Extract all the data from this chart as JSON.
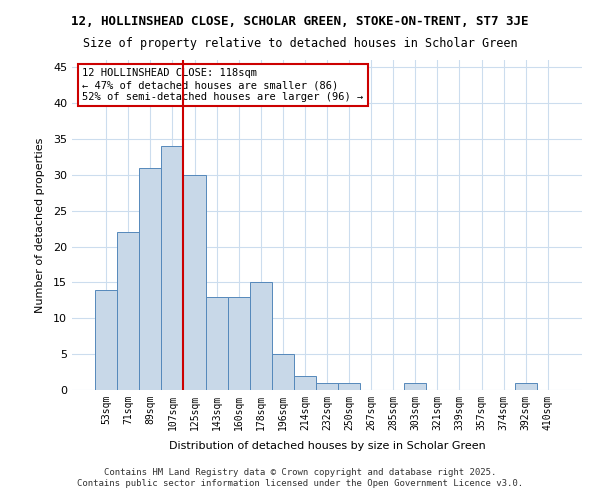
{
  "title": "12, HOLLINSHEAD CLOSE, SCHOLAR GREEN, STOKE-ON-TRENT, ST7 3JE",
  "subtitle": "Size of property relative to detached houses in Scholar Green",
  "xlabel": "Distribution of detached houses by size in Scholar Green",
  "ylabel": "Number of detached properties",
  "bar_color": "#c8d8e8",
  "bar_edge_color": "#5588bb",
  "background_color": "#ffffff",
  "grid_color": "#ccddee",
  "bin_labels": [
    "53sqm",
    "71sqm",
    "89sqm",
    "107sqm",
    "125sqm",
    "143sqm",
    "160sqm",
    "178sqm",
    "196sqm",
    "214sqm",
    "232sqm",
    "250sqm",
    "267sqm",
    "285sqm",
    "303sqm",
    "321sqm",
    "339sqm",
    "357sqm",
    "374sqm",
    "392sqm",
    "410sqm"
  ],
  "bin_values": [
    14,
    22,
    31,
    34,
    30,
    13,
    13,
    15,
    5,
    2,
    1,
    1,
    0,
    0,
    1,
    0,
    0,
    0,
    0,
    1,
    0
  ],
  "ylim": [
    0,
    46
  ],
  "yticks": [
    0,
    5,
    10,
    15,
    20,
    25,
    30,
    35,
    40,
    45
  ],
  "property_line_x": 4.0,
  "annotation_text": "12 HOLLINSHEAD CLOSE: 118sqm\n← 47% of detached houses are smaller (86)\n52% of semi-detached houses are larger (96) →",
  "annotation_box_color": "#ffffff",
  "annotation_box_edge": "#cc0000",
  "vline_color": "#cc0000",
  "footer_line1": "Contains HM Land Registry data © Crown copyright and database right 2025.",
  "footer_line2": "Contains public sector information licensed under the Open Government Licence v3.0."
}
